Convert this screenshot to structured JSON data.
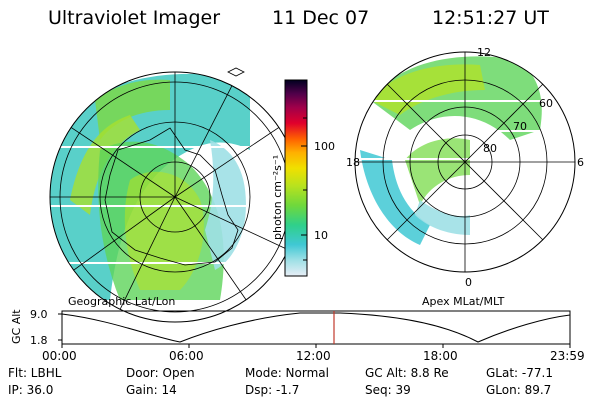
{
  "header": {
    "instrument": "Ultraviolet Imager",
    "date": "11 Dec 07",
    "time": "12:51:27 UT"
  },
  "colorbar": {
    "label": "photon cm⁻²s⁻¹",
    "ticks": [
      "100",
      "10"
    ]
  },
  "geo_panel": {
    "caption": "Geographic Lat/Lon"
  },
  "apex_panel": {
    "caption": "Apex  MLat/MLT",
    "lat_labels": [
      "60",
      "70",
      "80"
    ],
    "mlt_labels": [
      "12",
      "18",
      "6",
      "0"
    ]
  },
  "altitude_plot": {
    "ylabel": "GC Alt",
    "yticks": [
      "9.0",
      "1.8"
    ],
    "xticks": [
      "00:00",
      "06:00",
      "12:00",
      "18:00",
      "23:59"
    ],
    "marker_time": "12:51"
  },
  "status": {
    "flt": "Flt: LBHL",
    "ip": "IP: 36.0",
    "door": "Door: Open",
    "gain": "Gain: 14",
    "mode": "Mode: Normal",
    "dsp": "Dsp:   -1.7",
    "gc_alt": "GC Alt: 8.8 Re",
    "seq": "Seq: 39",
    "glat": "GLat: -77.1",
    "glon": "GLon:  89.7"
  },
  "colors": {
    "marker": "#c0392b",
    "scale": [
      "#e8eef6",
      "#9fe0e6",
      "#40c8d4",
      "#2fd08a",
      "#6fd83c",
      "#b8e21e",
      "#f0e000",
      "#ffb000",
      "#ff6000",
      "#e0002c",
      "#a0004a",
      "#50004a",
      "#000020"
    ]
  }
}
